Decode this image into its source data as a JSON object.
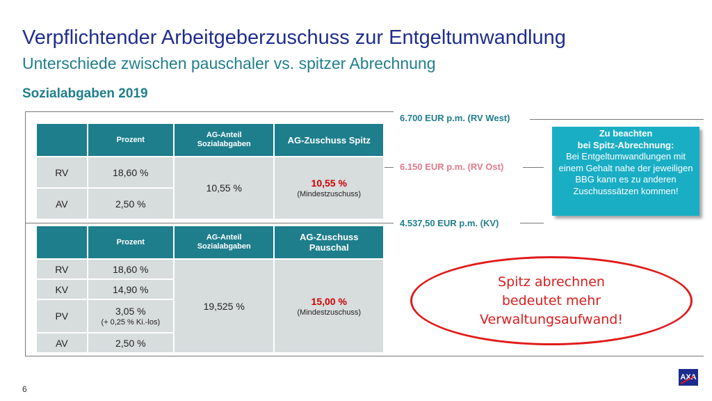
{
  "header": {
    "title": "Verpflichtender Arbeitgeberzuschuss zur Entgeltumwandlung",
    "subtitle": "Unterschiede zwischen pauschaler vs. spitzer Abrechnung",
    "section": "Sozialabgaben 2019"
  },
  "thresholds": {
    "west": "6.700  EUR p.m. (RV West)",
    "ost": "6.150 EUR p.m. (RV Ost)",
    "kv": "4.537,50 EUR p.m. (KV)"
  },
  "table_spitz": {
    "head_prozent": "Prozent",
    "head_anteil_1": "AG-Anteil",
    "head_anteil_2": "Sozialabgaben",
    "head_zuschuss": "AG-Zuschuss Spitz",
    "rows": [
      {
        "label": "RV",
        "value": "18,60 %"
      },
      {
        "label": "AV",
        "value": "2,50 %"
      }
    ],
    "anteil": "10,55 %",
    "zuschuss": "10,55 %",
    "zuschuss_note": "(Mindestzuschuss)"
  },
  "table_pauschal": {
    "head_prozent": "Prozent",
    "head_anteil_1": "AG-Anteil",
    "head_anteil_2": "Sozialabgaben",
    "head_zuschuss_1": "AG-Zuschuss",
    "head_zuschuss_2": "Pauschal",
    "rows": [
      {
        "label": "RV",
        "value": "18,60 %",
        "sub": ""
      },
      {
        "label": "KV",
        "value": "14,90 %",
        "sub": ""
      },
      {
        "label": "PV",
        "value": "3,05 %",
        "sub": "(+ 0,25 % Ki.-los)"
      },
      {
        "label": "AV",
        "value": "2,50 %",
        "sub": ""
      }
    ],
    "anteil": "19,525 %",
    "zuschuss": "15,00 %",
    "zuschuss_note": "(Mindestzuschuss)"
  },
  "note": {
    "line1": "Zu beachten",
    "line2": "bei Spitz-Abrechnung:",
    "body": "Bei Entgeltumwandlungen mit einem Gehalt nahe der jeweiligen BBG kann es zu anderen Zuschusssätzen kommen!"
  },
  "callout": {
    "line1": "Spitz abrechnen",
    "line2": "bedeutet mehr",
    "line3": "Verwaltungsaufwand!"
  },
  "footer": {
    "page": "6",
    "logo": "AXA"
  },
  "colors": {
    "title": "#1f2e8c",
    "accent": "#1f7e8c",
    "note_bg": "#1aaec5",
    "alert": "#e01b1b"
  }
}
